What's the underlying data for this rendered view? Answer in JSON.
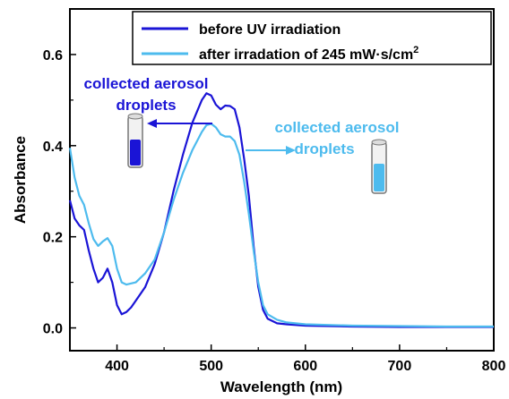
{
  "chart_data": {
    "type": "line",
    "xlabel": "Wavelength (nm)",
    "ylabel": "Absorbance",
    "xlim": [
      350,
      800
    ],
    "ylim": [
      -0.05,
      0.7
    ],
    "xticks": [
      400,
      500,
      600,
      700,
      800
    ],
    "xtick_labels": [
      "400",
      "500",
      "600",
      "700",
      "800"
    ],
    "yticks": [
      0.0,
      0.2,
      0.4,
      0.6
    ],
    "ytick_labels": [
      "0.0",
      "0.2",
      "0.4",
      "0.6"
    ],
    "grid": false,
    "legend_position": "top-right",
    "legend": {
      "before_label": "before UV irradiation",
      "after_label_main": "after irradation of  245 mW·s/cm",
      "after_label_sup": "2"
    },
    "annotations": {
      "left_line1": "collected aerosol",
      "left_line2": "droplets",
      "right_line1": "collected aerosol",
      "right_line2": "droplets"
    },
    "colors": {
      "before": "#1a14d6",
      "after": "#4dbbee"
    },
    "series": [
      {
        "name": "before UV irradiation",
        "color": "#1a14d6",
        "x": [
          350,
          355,
          360,
          365,
          370,
          375,
          380,
          385,
          390,
          395,
          400,
          405,
          410,
          415,
          420,
          430,
          440,
          450,
          460,
          470,
          480,
          490,
          495,
          500,
          505,
          510,
          515,
          520,
          525,
          530,
          535,
          540,
          545,
          550,
          555,
          560,
          570,
          580,
          600,
          650,
          700,
          750,
          800
        ],
        "y": [
          0.28,
          0.24,
          0.225,
          0.215,
          0.17,
          0.13,
          0.1,
          0.11,
          0.13,
          0.1,
          0.05,
          0.03,
          0.035,
          0.045,
          0.06,
          0.09,
          0.14,
          0.21,
          0.3,
          0.38,
          0.45,
          0.5,
          0.515,
          0.51,
          0.49,
          0.48,
          0.488,
          0.487,
          0.48,
          0.44,
          0.37,
          0.29,
          0.18,
          0.09,
          0.04,
          0.02,
          0.01,
          0.008,
          0.005,
          0.003,
          0.002,
          0.002,
          0.002
        ]
      },
      {
        "name": "after irradation of 245 mW·s/cm²",
        "color": "#4dbbee",
        "x": [
          350,
          355,
          360,
          365,
          370,
          375,
          380,
          385,
          390,
          395,
          400,
          405,
          410,
          420,
          430,
          440,
          450,
          460,
          470,
          480,
          490,
          495,
          500,
          505,
          510,
          515,
          520,
          525,
          530,
          535,
          540,
          545,
          550,
          555,
          560,
          570,
          580,
          600,
          650,
          700,
          750,
          800
        ],
        "y": [
          0.395,
          0.33,
          0.29,
          0.27,
          0.23,
          0.195,
          0.18,
          0.19,
          0.197,
          0.18,
          0.13,
          0.1,
          0.095,
          0.1,
          0.12,
          0.15,
          0.21,
          0.28,
          0.34,
          0.39,
          0.43,
          0.445,
          0.448,
          0.44,
          0.425,
          0.42,
          0.42,
          0.41,
          0.38,
          0.32,
          0.25,
          0.17,
          0.1,
          0.05,
          0.03,
          0.018,
          0.012,
          0.008,
          0.005,
          0.004,
          0.003,
          0.003
        ]
      }
    ]
  }
}
